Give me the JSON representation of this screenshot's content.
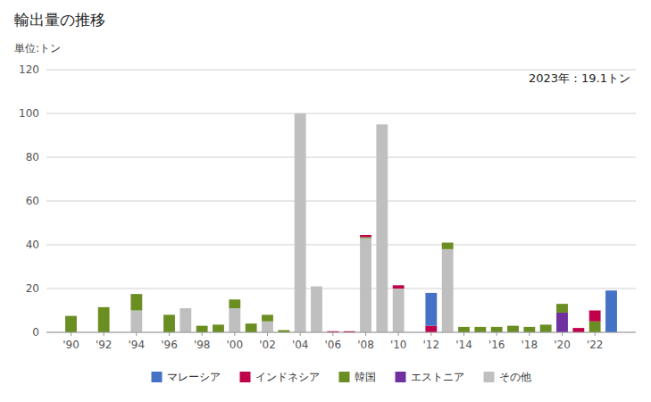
{
  "chart_data": {
    "type": "bar",
    "stacked": true,
    "title": "輸出量の推移",
    "subtitle": "単位:トン",
    "annotation": "2023年：19.1トン",
    "x": [
      1990,
      1991,
      1992,
      1993,
      1994,
      1995,
      1996,
      1997,
      1998,
      1999,
      2000,
      2001,
      2002,
      2003,
      2004,
      2005,
      2006,
      2007,
      2008,
      2009,
      2010,
      2011,
      2012,
      2013,
      2014,
      2015,
      2016,
      2017,
      2018,
      2019,
      2020,
      2021,
      2022,
      2023
    ],
    "series": [
      {
        "name": "マレーシア",
        "color": "#4472c4",
        "values": [
          0,
          0,
          0,
          0,
          0,
          0,
          0,
          0,
          0,
          0,
          0,
          0,
          0,
          0,
          0,
          0,
          0,
          0,
          0,
          0,
          0,
          0,
          15,
          0,
          0,
          0,
          0,
          0,
          0,
          0,
          0,
          0,
          0,
          19.1
        ]
      },
      {
        "name": "インドネシア",
        "color": "#c0004b",
        "values": [
          0,
          0,
          0,
          0,
          0,
          0,
          0,
          0,
          0,
          0,
          0,
          0,
          0,
          0,
          0,
          0,
          0.5,
          0.5,
          1,
          0,
          1.5,
          0,
          3,
          0,
          0,
          0,
          0,
          0,
          0,
          0,
          0,
          2,
          5,
          0
        ]
      },
      {
        "name": "韓国",
        "color": "#6b8e23",
        "values": [
          7.5,
          0,
          11.5,
          0,
          7.5,
          0,
          8,
          0,
          3,
          3.5,
          4,
          4,
          3,
          1,
          0,
          0,
          0,
          0,
          0.5,
          0,
          0,
          0,
          0,
          3,
          2.5,
          2.5,
          2.5,
          3,
          2.5,
          3.5,
          4,
          0,
          5,
          0
        ]
      },
      {
        "name": "エストニア",
        "color": "#7030a0",
        "values": [
          0,
          0,
          0,
          0,
          0,
          0,
          0,
          0,
          0,
          0,
          0,
          0,
          0,
          0,
          0,
          0,
          0,
          0,
          0,
          0,
          0,
          0,
          0,
          0,
          0,
          0,
          0,
          0,
          0,
          0,
          9,
          0,
          0,
          0
        ]
      },
      {
        "name": "その他",
        "color": "#bfbfbf",
        "values": [
          0,
          0,
          0,
          0,
          10,
          0,
          0,
          11,
          0,
          0,
          11,
          0,
          5,
          0,
          100,
          21,
          0,
          0,
          43,
          95,
          20,
          0,
          0,
          38,
          0,
          0,
          0,
          0,
          0,
          0,
          0,
          0,
          0,
          0
        ]
      }
    ],
    "xlim": [
      1988.5,
      2024.5
    ],
    "xticks": [
      {
        "value": 1990,
        "label": "'90"
      },
      {
        "value": 1992,
        "label": "'92"
      },
      {
        "value": 1994,
        "label": "'94"
      },
      {
        "value": 1996,
        "label": "'96"
      },
      {
        "value": 1998,
        "label": "'98"
      },
      {
        "value": 2000,
        "label": "'00"
      },
      {
        "value": 2002,
        "label": "'02"
      },
      {
        "value": 2004,
        "label": "'04"
      },
      {
        "value": 2006,
        "label": "'06"
      },
      {
        "value": 2008,
        "label": "'08"
      },
      {
        "value": 2010,
        "label": "'10"
      },
      {
        "value": 2012,
        "label": "'12"
      },
      {
        "value": 2014,
        "label": "'14"
      },
      {
        "value": 2016,
        "label": "'16"
      },
      {
        "value": 2018,
        "label": "'18"
      },
      {
        "value": 2020,
        "label": "'20"
      },
      {
        "value": 2022,
        "label": "'22"
      }
    ],
    "ylim": [
      0,
      120
    ],
    "yticks": [
      0,
      20,
      40,
      60,
      80,
      100,
      120
    ],
    "grid": true,
    "legend": "bottom"
  }
}
